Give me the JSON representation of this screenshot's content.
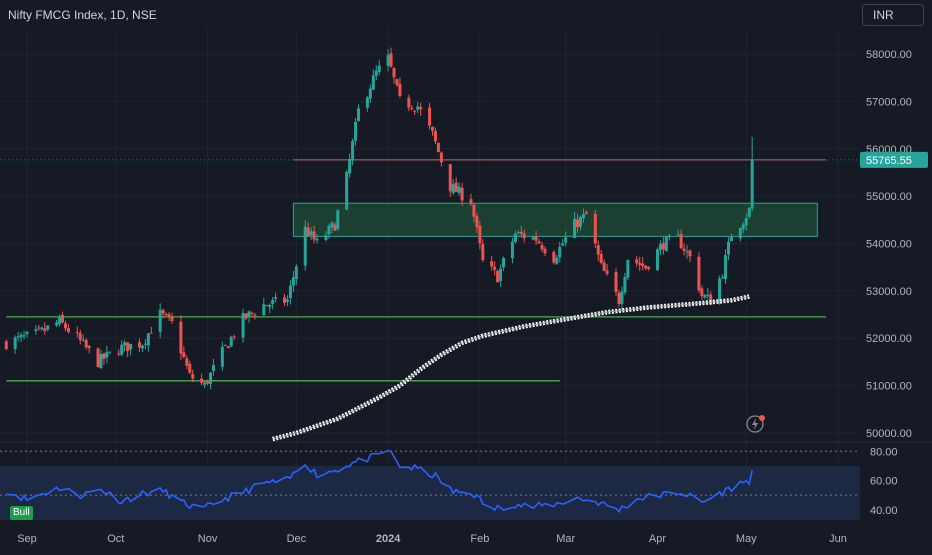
{
  "header": {
    "title": "Nifty FMCG Index, 1D, NSE",
    "currency": "INR"
  },
  "badges": {
    "rsi_signal": "Bull"
  },
  "colors": {
    "background": "#161a25",
    "up": "#26a69a",
    "down": "#ef5350",
    "support_line": "#4caf50",
    "resistance_line": "#ef5350",
    "zone_fill": "#1e4d36",
    "zone_border": "#26a69a",
    "moving_average": "#ffffff",
    "rsi_line": "#2962ff",
    "rsi_band": "#1e2a47",
    "price_label": "#26a69a"
  },
  "chart_data": [
    {
      "type": "candlestick",
      "title": "Nifty FMCG Index, 1D, NSE",
      "x_ticks": [
        "Sep",
        "Oct",
        "Nov",
        "Dec",
        "2024",
        "Feb",
        "Mar",
        "Apr",
        "May",
        "Jun"
      ],
      "y_ticks": [
        "50000.00",
        "51000.00",
        "52000.00",
        "53000.00",
        "54000.00",
        "55000.00",
        "56000.00",
        "57000.00",
        "58000.00"
      ],
      "ylim": [
        49850,
        58550
      ],
      "last_price": 55765.55,
      "last_price_label": "55765.55",
      "date_range": [
        "2023-08-25",
        "2024-05-03"
      ],
      "close_path": [
        [
          "2023-08-25",
          51900
        ],
        [
          "2023-09-05",
          52100
        ],
        [
          "2023-09-12",
          52350
        ],
        [
          "2023-09-18",
          52000
        ],
        [
          "2023-09-25",
          51500
        ],
        [
          "2023-10-03",
          51800
        ],
        [
          "2023-10-10",
          51900
        ],
        [
          "2023-10-16",
          52500
        ],
        [
          "2023-10-20",
          52300
        ],
        [
          "2023-10-26",
          51200
        ],
        [
          "2023-10-31",
          51000
        ],
        [
          "2023-11-06",
          51700
        ],
        [
          "2023-11-13",
          52400
        ],
        [
          "2023-11-20",
          52700
        ],
        [
          "2023-11-28",
          52800
        ],
        [
          "2023-12-04",
          54300
        ],
        [
          "2023-12-08",
          54000
        ],
        [
          "2023-12-14",
          54400
        ],
        [
          "2023-12-18",
          55400
        ],
        [
          "2023-12-22",
          56800
        ],
        [
          "2023-12-28",
          57600
        ],
        [
          "2024-01-01",
          57900
        ],
        [
          "2024-01-05",
          57000
        ],
        [
          "2024-01-11",
          56900
        ],
        [
          "2024-01-16",
          56300
        ],
        [
          "2024-01-22",
          55200
        ],
        [
          "2024-01-29",
          54900
        ],
        [
          "2024-02-02",
          53600
        ],
        [
          "2024-02-07",
          53300
        ],
        [
          "2024-02-13",
          54200
        ],
        [
          "2024-02-20",
          54100
        ],
        [
          "2024-02-26",
          53700
        ],
        [
          "2024-03-04",
          54400
        ],
        [
          "2024-03-08",
          54600
        ],
        [
          "2024-03-13",
          53500
        ],
        [
          "2024-03-19",
          52800
        ],
        [
          "2024-03-22",
          53700
        ],
        [
          "2024-03-28",
          53500
        ],
        [
          "2024-04-03",
          54000
        ],
        [
          "2024-04-08",
          54100
        ],
        [
          "2024-04-12",
          53700
        ],
        [
          "2024-04-16",
          52900
        ],
        [
          "2024-04-19",
          52800
        ],
        [
          "2024-04-23",
          53400
        ],
        [
          "2024-04-26",
          54200
        ],
        [
          "2024-04-30",
          54500
        ],
        [
          "2024-05-02",
          54700
        ],
        [
          "2024-05-03",
          55766
        ]
      ],
      "moving_average": [
        [
          "2023-11-23",
          49870
        ],
        [
          "2023-12-01",
          50000
        ],
        [
          "2023-12-15",
          50300
        ],
        [
          "2023-12-29",
          50750
        ],
        [
          "2024-01-05",
          51000
        ],
        [
          "2024-01-12",
          51350
        ],
        [
          "2024-01-19",
          51650
        ],
        [
          "2024-01-26",
          51900
        ],
        [
          "2024-02-02",
          52050
        ],
        [
          "2024-02-16",
          52250
        ],
        [
          "2024-03-01",
          52400
        ],
        [
          "2024-03-15",
          52550
        ],
        [
          "2024-03-29",
          52650
        ],
        [
          "2024-04-12",
          52720
        ],
        [
          "2024-04-26",
          52800
        ],
        [
          "2024-05-02",
          52880
        ]
      ],
      "support_lines": [
        {
          "from": "2023-08-25",
          "to": "2024-05-28",
          "price": 52450
        },
        {
          "from": "2023-08-25",
          "to": "2024-02-28",
          "price": 51100
        }
      ],
      "resistance_line": {
        "from": "2023-11-30",
        "to": "2024-05-28",
        "price": 55766
      },
      "zone": {
        "from": "2023-11-30",
        "to": "2024-05-25",
        "low": 54150,
        "high": 54850
      }
    },
    {
      "type": "line",
      "name": "RSI",
      "y_ticks": [
        "40.00",
        "60.00",
        "80.00"
      ],
      "ylim": [
        33,
        85
      ],
      "overbought": 70,
      "oversold": 30,
      "points": [
        [
          "2023-08-25",
          53
        ],
        [
          "2023-09-01",
          47
        ],
        [
          "2023-09-06",
          51
        ],
        [
          "2023-09-12",
          55
        ],
        [
          "2023-09-19",
          50
        ],
        [
          "2023-09-26",
          54
        ],
        [
          "2023-10-03",
          46
        ],
        [
          "2023-10-10",
          51
        ],
        [
          "2023-10-17",
          53
        ],
        [
          "2023-10-23",
          45
        ],
        [
          "2023-10-30",
          40
        ],
        [
          "2023-11-06",
          47
        ],
        [
          "2023-11-13",
          52
        ],
        [
          "2023-11-20",
          58
        ],
        [
          "2023-11-28",
          60
        ],
        [
          "2023-12-04",
          72
        ],
        [
          "2023-12-08",
          64
        ],
        [
          "2023-12-14",
          67
        ],
        [
          "2023-12-20",
          72
        ],
        [
          "2023-12-27",
          76
        ],
        [
          "2024-01-01",
          81
        ],
        [
          "2024-01-05",
          70
        ],
        [
          "2024-01-11",
          68
        ],
        [
          "2024-01-17",
          63
        ],
        [
          "2024-01-23",
          52
        ],
        [
          "2024-01-29",
          52
        ],
        [
          "2024-02-05",
          40
        ],
        [
          "2024-02-12",
          44
        ],
        [
          "2024-02-19",
          42
        ],
        [
          "2024-02-27",
          44
        ],
        [
          "2024-03-05",
          48
        ],
        [
          "2024-03-12",
          45
        ],
        [
          "2024-03-19",
          40
        ],
        [
          "2024-03-26",
          48
        ],
        [
          "2024-04-02",
          50
        ],
        [
          "2024-04-09",
          52
        ],
        [
          "2024-04-16",
          45
        ],
        [
          "2024-04-22",
          51
        ],
        [
          "2024-04-29",
          58
        ],
        [
          "2024-05-02",
          60
        ],
        [
          "2024-05-03",
          67
        ]
      ]
    }
  ]
}
